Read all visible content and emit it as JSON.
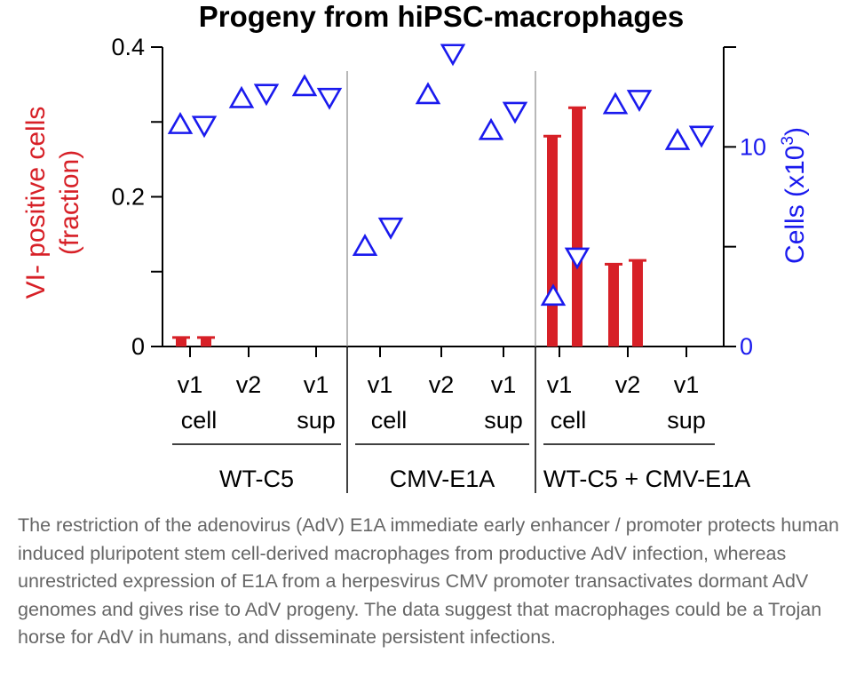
{
  "chart_data": {
    "type": "bar",
    "title": "Progeny from hiPSC-macrophages",
    "y_left_label_lines": [
      "VI- positive cells",
      "(fraction)"
    ],
    "y_right_label_main": "Cells (x10",
    "y_right_label_sup": "3",
    "y_right_label_end": ")",
    "ylim_left": [
      0,
      0.4
    ],
    "ylim_right": [
      0,
      15
    ],
    "left_ticks": [
      0,
      0.1,
      0.2,
      0.3,
      0.4
    ],
    "left_tick_labels": [
      "0",
      "",
      "0.2",
      "",
      "0.4"
    ],
    "right_ticks": [
      0,
      5,
      10,
      15
    ],
    "right_tick_labels": [
      "0",
      "",
      "10",
      ""
    ],
    "groups": [
      {
        "label": "WT-C5",
        "subgroups": [
          {
            "v": "v1",
            "type": "cell"
          },
          {
            "v": "v2",
            "type": ""
          },
          {
            "v": "v1",
            "type": "sup"
          }
        ]
      },
      {
        "label": "CMV-E1A",
        "subgroups": [
          {
            "v": "v1",
            "type": "cell"
          },
          {
            "v": "v2",
            "type": ""
          },
          {
            "v": "v1",
            "type": "sup"
          }
        ]
      },
      {
        "label": "WT-C5 + CMV-E1A",
        "subgroups": [
          {
            "v": "v1",
            "type": "cell"
          },
          {
            "v": "v2",
            "type": ""
          },
          {
            "v": "v1",
            "type": "sup"
          }
        ]
      }
    ],
    "series": [
      {
        "kind": "bar",
        "axis": "left",
        "color": "#d72027",
        "values": [
          0.012,
          0.012,
          null,
          null,
          null,
          null,
          0.281,
          0.319,
          0.11,
          0.115,
          null,
          null
        ]
      },
      {
        "kind": "marker",
        "axis": "right",
        "color": "#1a1aee",
        "values": [
          11.1,
          11.1,
          12.4,
          12.7,
          13.0,
          12.5,
          5.0,
          6.0,
          12.6,
          14.7,
          10.8,
          11.8,
          2.5,
          4.5,
          12.1,
          12.4,
          10.3,
          10.6
        ],
        "orientation": [
          "up",
          "down",
          "up",
          "down",
          "up",
          "down",
          "up",
          "down",
          "up",
          "down",
          "up",
          "down",
          "up",
          "down",
          "up",
          "down",
          "up",
          "down"
        ]
      }
    ]
  },
  "caption": "The restriction of the adenovirus (AdV) E1A immediate early enhancer / promoter protects human induced pluripotent stem cell-derived macrophages from productive AdV infection, whereas unrestricted expression of E1A from a herpesvirus CMV promoter transactivates dormant AdV genomes and gives rise to AdV progeny. The data suggest that macrophages could be a Trojan horse for AdV in humans, and disseminate persistent infections."
}
